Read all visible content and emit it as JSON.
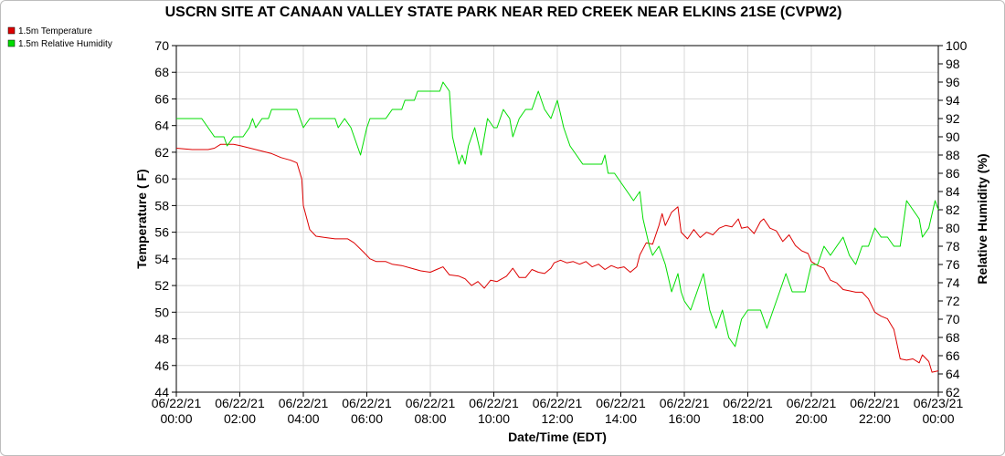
{
  "chart_data": {
    "type": "line",
    "title": "USCRN SITE AT CANAAN VALLEY STATE PARK NEAR RED CREEK NEAR ELKINS 21SE (CVPW2)",
    "xlabel": "Date/Time (EDT)",
    "ylabel_left": "Temperature ( F)",
    "ylabel_right": "Relative Humidity (%)",
    "xlim": [
      0,
      24
    ],
    "ylim_left": [
      44,
      70
    ],
    "ylim_right": [
      62,
      100
    ],
    "y_ticks_left": [
      44,
      46,
      48,
      50,
      52,
      54,
      56,
      58,
      60,
      62,
      64,
      66,
      68,
      70
    ],
    "y_ticks_right": [
      62,
      64,
      66,
      68,
      70,
      72,
      74,
      76,
      78,
      80,
      82,
      84,
      86,
      88,
      90,
      92,
      94,
      96,
      98,
      100
    ],
    "x_ticks": [
      {
        "x": 0,
        "date": "06/22/21",
        "time": "00:00"
      },
      {
        "x": 2,
        "date": "06/22/21",
        "time": "02:00"
      },
      {
        "x": 4,
        "date": "06/22/21",
        "time": "04:00"
      },
      {
        "x": 6,
        "date": "06/22/21",
        "time": "06:00"
      },
      {
        "x": 8,
        "date": "06/22/21",
        "time": "08:00"
      },
      {
        "x": 10,
        "date": "06/22/21",
        "time": "10:00"
      },
      {
        "x": 12,
        "date": "06/22/21",
        "time": "12:00"
      },
      {
        "x": 14,
        "date": "06/22/21",
        "time": "14:00"
      },
      {
        "x": 16,
        "date": "06/22/21",
        "time": "16:00"
      },
      {
        "x": 18,
        "date": "06/22/21",
        "time": "18:00"
      },
      {
        "x": 20,
        "date": "06/22/21",
        "time": "20:00"
      },
      {
        "x": 22,
        "date": "06/22/21",
        "time": "22:00"
      },
      {
        "x": 24,
        "date": "06/23/21",
        "time": "00:00"
      }
    ],
    "grid": true,
    "legend_position": "top-left",
    "series": [
      {
        "name": "1.5m Temperature",
        "axis": "left",
        "color": "#dd0000",
        "points": [
          [
            0.0,
            62.3
          ],
          [
            0.5,
            62.2
          ],
          [
            1.0,
            62.2
          ],
          [
            1.2,
            62.3
          ],
          [
            1.4,
            62.6
          ],
          [
            1.8,
            62.6
          ],
          [
            2.0,
            62.5
          ],
          [
            2.5,
            62.2
          ],
          [
            3.0,
            61.9
          ],
          [
            3.3,
            61.6
          ],
          [
            3.6,
            61.4
          ],
          [
            3.8,
            61.2
          ],
          [
            3.95,
            60.0
          ],
          [
            4.0,
            58.0
          ],
          [
            4.2,
            56.2
          ],
          [
            4.4,
            55.7
          ],
          [
            4.7,
            55.6
          ],
          [
            5.0,
            55.5
          ],
          [
            5.4,
            55.5
          ],
          [
            5.6,
            55.2
          ],
          [
            5.9,
            54.5
          ],
          [
            6.1,
            54.0
          ],
          [
            6.3,
            53.8
          ],
          [
            6.6,
            53.8
          ],
          [
            6.8,
            53.6
          ],
          [
            7.1,
            53.5
          ],
          [
            7.4,
            53.3
          ],
          [
            7.7,
            53.1
          ],
          [
            8.0,
            53.0
          ],
          [
            8.2,
            53.2
          ],
          [
            8.4,
            53.4
          ],
          [
            8.6,
            52.8
          ],
          [
            8.9,
            52.7
          ],
          [
            9.1,
            52.5
          ],
          [
            9.3,
            52.0
          ],
          [
            9.5,
            52.3
          ],
          [
            9.7,
            51.8
          ],
          [
            9.9,
            52.4
          ],
          [
            10.1,
            52.3
          ],
          [
            10.4,
            52.7
          ],
          [
            10.6,
            53.3
          ],
          [
            10.8,
            52.6
          ],
          [
            11.0,
            52.6
          ],
          [
            11.2,
            53.2
          ],
          [
            11.4,
            53.0
          ],
          [
            11.6,
            52.9
          ],
          [
            11.8,
            53.3
          ],
          [
            11.9,
            53.7
          ],
          [
            12.1,
            53.9
          ],
          [
            12.3,
            53.7
          ],
          [
            12.5,
            53.8
          ],
          [
            12.7,
            53.6
          ],
          [
            12.9,
            53.8
          ],
          [
            13.1,
            53.4
          ],
          [
            13.3,
            53.6
          ],
          [
            13.5,
            53.2
          ],
          [
            13.7,
            53.5
          ],
          [
            13.9,
            53.3
          ],
          [
            14.1,
            53.4
          ],
          [
            14.3,
            53.0
          ],
          [
            14.5,
            53.4
          ],
          [
            14.6,
            54.3
          ],
          [
            14.8,
            55.2
          ],
          [
            15.0,
            55.1
          ],
          [
            15.2,
            56.5
          ],
          [
            15.3,
            57.4
          ],
          [
            15.4,
            56.5
          ],
          [
            15.6,
            57.5
          ],
          [
            15.8,
            57.9
          ],
          [
            15.9,
            56.0
          ],
          [
            16.1,
            55.5
          ],
          [
            16.3,
            56.2
          ],
          [
            16.5,
            55.6
          ],
          [
            16.7,
            56.0
          ],
          [
            16.9,
            55.8
          ],
          [
            17.1,
            56.3
          ],
          [
            17.3,
            56.5
          ],
          [
            17.5,
            56.4
          ],
          [
            17.7,
            57.0
          ],
          [
            17.8,
            56.3
          ],
          [
            18.0,
            56.4
          ],
          [
            18.2,
            55.9
          ],
          [
            18.4,
            56.8
          ],
          [
            18.5,
            57.0
          ],
          [
            18.7,
            56.3
          ],
          [
            18.9,
            56.1
          ],
          [
            19.1,
            55.3
          ],
          [
            19.3,
            55.8
          ],
          [
            19.5,
            55.0
          ],
          [
            19.7,
            54.6
          ],
          [
            19.9,
            54.4
          ],
          [
            20.0,
            53.8
          ],
          [
            20.2,
            53.5
          ],
          [
            20.4,
            53.3
          ],
          [
            20.6,
            52.4
          ],
          [
            20.8,
            52.2
          ],
          [
            21.0,
            51.7
          ],
          [
            21.2,
            51.6
          ],
          [
            21.4,
            51.5
          ],
          [
            21.6,
            51.5
          ],
          [
            21.8,
            51.0
          ],
          [
            22.0,
            50.0
          ],
          [
            22.2,
            49.7
          ],
          [
            22.4,
            49.5
          ],
          [
            22.6,
            48.7
          ],
          [
            22.8,
            46.5
          ],
          [
            23.0,
            46.4
          ],
          [
            23.2,
            46.5
          ],
          [
            23.4,
            46.2
          ],
          [
            23.5,
            46.8
          ],
          [
            23.7,
            46.3
          ],
          [
            23.8,
            45.5
          ],
          [
            24.0,
            45.6
          ]
        ]
      },
      {
        "name": "1.5m Relative Humidity",
        "axis": "right",
        "color": "#00dd00",
        "points": [
          [
            0.0,
            92
          ],
          [
            0.4,
            92
          ],
          [
            0.8,
            92
          ],
          [
            1.0,
            91
          ],
          [
            1.2,
            90
          ],
          [
            1.5,
            90
          ],
          [
            1.6,
            89
          ],
          [
            1.8,
            90
          ],
          [
            2.1,
            90
          ],
          [
            2.3,
            91
          ],
          [
            2.4,
            92
          ],
          [
            2.5,
            91
          ],
          [
            2.7,
            92
          ],
          [
            2.9,
            92
          ],
          [
            3.0,
            93
          ],
          [
            3.4,
            93
          ],
          [
            3.8,
            93
          ],
          [
            4.0,
            91
          ],
          [
            4.2,
            92
          ],
          [
            4.6,
            92
          ],
          [
            5.0,
            92
          ],
          [
            5.1,
            91
          ],
          [
            5.3,
            92
          ],
          [
            5.5,
            91
          ],
          [
            5.7,
            89
          ],
          [
            5.8,
            88
          ],
          [
            6.0,
            91
          ],
          [
            6.1,
            92
          ],
          [
            6.3,
            92
          ],
          [
            6.6,
            92
          ],
          [
            6.8,
            93
          ],
          [
            7.1,
            93
          ],
          [
            7.2,
            94
          ],
          [
            7.5,
            94
          ],
          [
            7.6,
            95
          ],
          [
            7.9,
            95
          ],
          [
            8.1,
            95
          ],
          [
            8.3,
            95
          ],
          [
            8.4,
            96
          ],
          [
            8.6,
            95
          ],
          [
            8.7,
            90
          ],
          [
            8.9,
            87
          ],
          [
            9.0,
            88
          ],
          [
            9.1,
            87
          ],
          [
            9.2,
            89
          ],
          [
            9.4,
            91
          ],
          [
            9.6,
            88
          ],
          [
            9.8,
            92
          ],
          [
            10.0,
            91
          ],
          [
            10.1,
            91
          ],
          [
            10.3,
            93
          ],
          [
            10.5,
            92
          ],
          [
            10.6,
            90
          ],
          [
            10.8,
            92
          ],
          [
            11.0,
            93
          ],
          [
            11.2,
            93
          ],
          [
            11.4,
            95
          ],
          [
            11.6,
            93
          ],
          [
            11.8,
            92
          ],
          [
            11.9,
            93
          ],
          [
            12.0,
            94
          ],
          [
            12.2,
            91
          ],
          [
            12.4,
            89
          ],
          [
            12.6,
            88
          ],
          [
            12.8,
            87
          ],
          [
            13.0,
            87
          ],
          [
            13.2,
            87
          ],
          [
            13.4,
            87
          ],
          [
            13.5,
            88
          ],
          [
            13.6,
            86
          ],
          [
            13.8,
            86
          ],
          [
            14.0,
            85
          ],
          [
            14.2,
            84
          ],
          [
            14.4,
            83
          ],
          [
            14.6,
            84
          ],
          [
            14.7,
            81
          ],
          [
            14.9,
            78
          ],
          [
            15.0,
            77
          ],
          [
            15.2,
            78
          ],
          [
            15.4,
            76
          ],
          [
            15.6,
            73
          ],
          [
            15.8,
            75
          ],
          [
            15.9,
            73
          ],
          [
            16.0,
            72
          ],
          [
            16.2,
            71
          ],
          [
            16.4,
            73
          ],
          [
            16.6,
            75
          ],
          [
            16.8,
            71
          ],
          [
            17.0,
            69
          ],
          [
            17.2,
            71
          ],
          [
            17.4,
            68
          ],
          [
            17.6,
            67
          ],
          [
            17.8,
            70
          ],
          [
            18.0,
            71
          ],
          [
            18.2,
            71
          ],
          [
            18.4,
            71
          ],
          [
            18.6,
            69
          ],
          [
            18.8,
            71
          ],
          [
            19.0,
            73
          ],
          [
            19.2,
            75
          ],
          [
            19.4,
            73
          ],
          [
            19.6,
            73
          ],
          [
            19.8,
            73
          ],
          [
            20.0,
            76
          ],
          [
            20.2,
            76
          ],
          [
            20.4,
            78
          ],
          [
            20.6,
            77
          ],
          [
            20.8,
            78
          ],
          [
            21.0,
            79
          ],
          [
            21.2,
            77
          ],
          [
            21.4,
            76
          ],
          [
            21.6,
            78
          ],
          [
            21.8,
            78
          ],
          [
            22.0,
            80
          ],
          [
            22.2,
            79
          ],
          [
            22.4,
            79
          ],
          [
            22.6,
            78
          ],
          [
            22.8,
            78
          ],
          [
            23.0,
            83
          ],
          [
            23.2,
            82
          ],
          [
            23.4,
            81
          ],
          [
            23.5,
            79
          ],
          [
            23.7,
            80
          ],
          [
            23.9,
            83
          ],
          [
            24.0,
            82
          ]
        ]
      }
    ]
  }
}
